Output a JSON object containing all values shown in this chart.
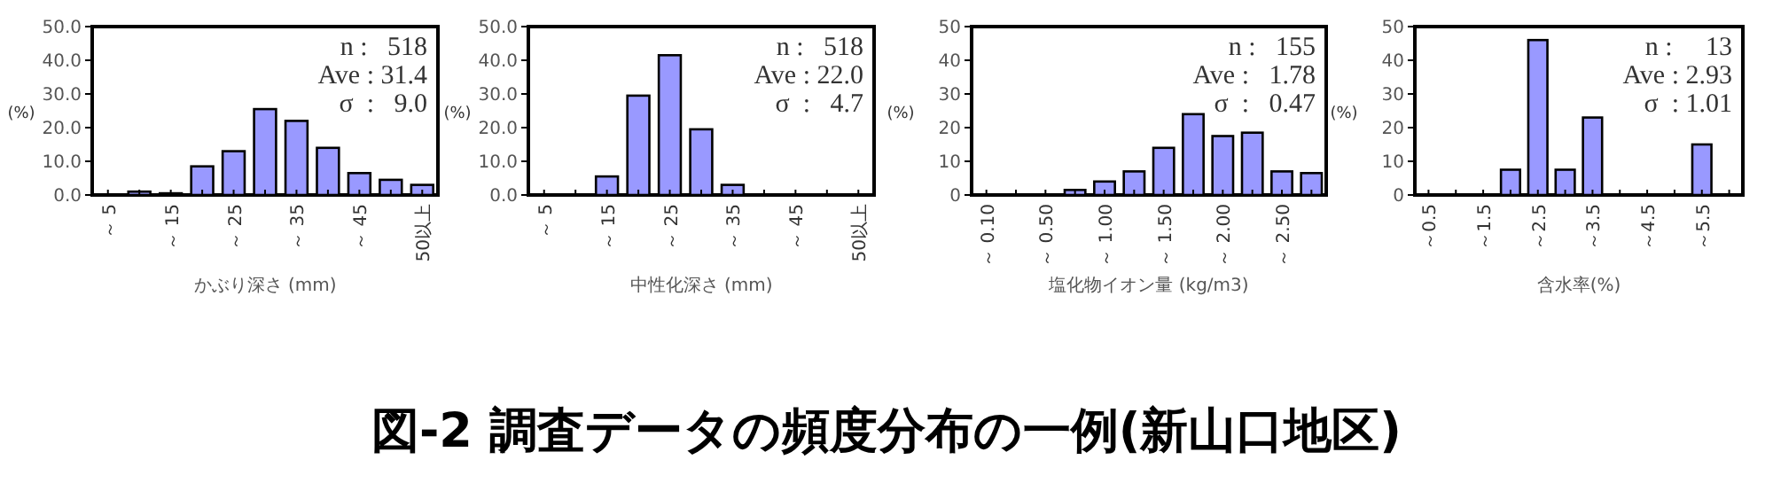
{
  "chart_data": [
    {
      "type": "bar",
      "title": "図-2  調査データの頻度分布の一例(新山口地区)",
      "xlabel": "かぶり深さ (mm)",
      "ylabel": "(%)",
      "categories": [
        "～ 5",
        null,
        "～ 15",
        null,
        "～ 25",
        null,
        "～ 35",
        null,
        "～ 45",
        null,
        "50以上"
      ],
      "values": [
        0,
        1,
        0.5,
        8.5,
        13,
        25.5,
        22,
        14,
        6.5,
        4.5,
        3
      ],
      "color": "#9999ff",
      "ylim": [
        0,
        50
      ],
      "yticks": [
        {
          "value": 0,
          "label": "0.0"
        },
        {
          "value": 10,
          "label": "10.0"
        },
        {
          "value": 20,
          "label": "20.0"
        },
        {
          "value": 30,
          "label": "30.0"
        },
        {
          "value": 40,
          "label": "40.0"
        },
        {
          "value": 50,
          "label": "50.0"
        }
      ],
      "annotations": [
        "n :   518",
        "Ave : 31.4",
        "σ  :   9.0"
      ]
    },
    {
      "type": "bar",
      "xlabel": "中性化深さ (mm)",
      "ylabel": "(%)",
      "categories": [
        "～ 5",
        null,
        "～ 15",
        null,
        "～ 25",
        null,
        "～ 35",
        null,
        "～ 45",
        null,
        "50以上"
      ],
      "values": [
        0,
        0,
        5.5,
        29.5,
        41.5,
        19.5,
        3,
        0,
        0,
        0,
        0
      ],
      "color": "#9999ff",
      "ylim": [
        0,
        50
      ],
      "yticks": [
        {
          "value": 0,
          "label": "0.0"
        },
        {
          "value": 10,
          "label": "10.0"
        },
        {
          "value": 20,
          "label": "20.0"
        },
        {
          "value": 30,
          "label": "30.0"
        },
        {
          "value": 40,
          "label": "40.0"
        },
        {
          "value": 50,
          "label": "50.0"
        }
      ],
      "annotations": [
        "n :   518",
        "Ave : 22.0",
        "σ  :   4.7"
      ]
    },
    {
      "type": "bar",
      "xlabel": "塩化物イオン量  (kg/m3)",
      "ylabel": "(%)",
      "categories": [
        "～ 0.10",
        null,
        "～ 0.50",
        null,
        "～ 1.00",
        null,
        "～ 1.50",
        null,
        "～ 2.00",
        null,
        "～ 2.50",
        null
      ],
      "values": [
        0,
        0,
        0,
        1.5,
        4,
        7,
        14,
        24,
        17.5,
        18.5,
        7,
        6.5
      ],
      "color": "#9999ff",
      "ylim": [
        0,
        50
      ],
      "yticks": [
        0,
        10,
        20,
        30,
        40,
        50
      ],
      "annotations": [
        "n :   155",
        "Ave :   1.78",
        "σ  :   0.47"
      ]
    },
    {
      "type": "bar",
      "xlabel": "含水率(%)",
      "ylabel": "(%)",
      "categories": [
        "～0.5",
        null,
        "～1.5",
        null,
        "～2.5",
        null,
        "～3.5",
        null,
        "～4.5",
        null,
        "～5.5",
        null
      ],
      "values": [
        0,
        0,
        0,
        7.5,
        46,
        7.5,
        23,
        0,
        0,
        0,
        15,
        0
      ],
      "color": "#9999ff",
      "ylim": [
        0,
        50
      ],
      "yticks": [
        0,
        10,
        20,
        30,
        40,
        50
      ],
      "annotations": [
        "n :     13",
        "Ave : 2.93",
        "σ  : 1.01"
      ]
    }
  ]
}
